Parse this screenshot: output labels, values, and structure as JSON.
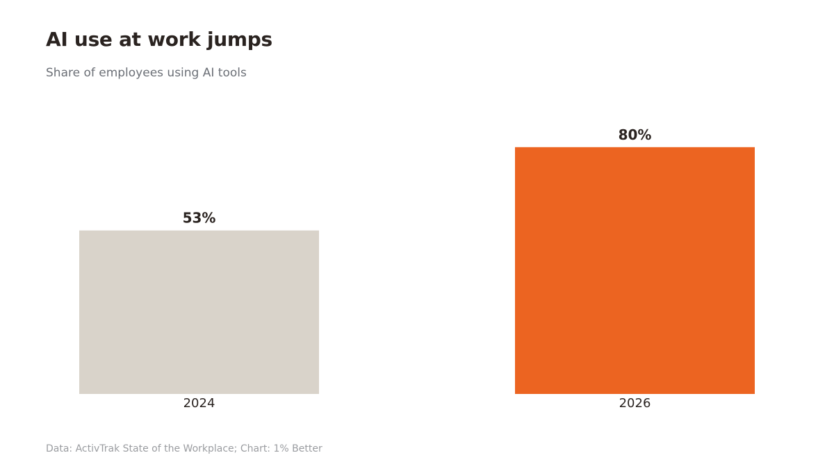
{
  "header": {
    "title": "AI use at work jumps",
    "subtitle": "Share of employees using AI tools"
  },
  "footer": {
    "source": "Data: ActivTrak State of the Workplace; Chart: 1% Better"
  },
  "colors": {
    "bar_2024": "#d9d3ca",
    "bar_2026": "#ec6421",
    "text": "#2a2320"
  },
  "chart_data": {
    "type": "bar",
    "title": "AI use at work jumps",
    "subtitle": "Share of employees using AI tools",
    "categories": [
      "2024",
      "2026"
    ],
    "values": [
      53,
      80
    ],
    "value_labels": [
      "53%",
      "80%"
    ],
    "xlabel": "",
    "ylabel": "",
    "ylim": [
      0,
      100
    ],
    "grid": false,
    "legend": "none"
  }
}
